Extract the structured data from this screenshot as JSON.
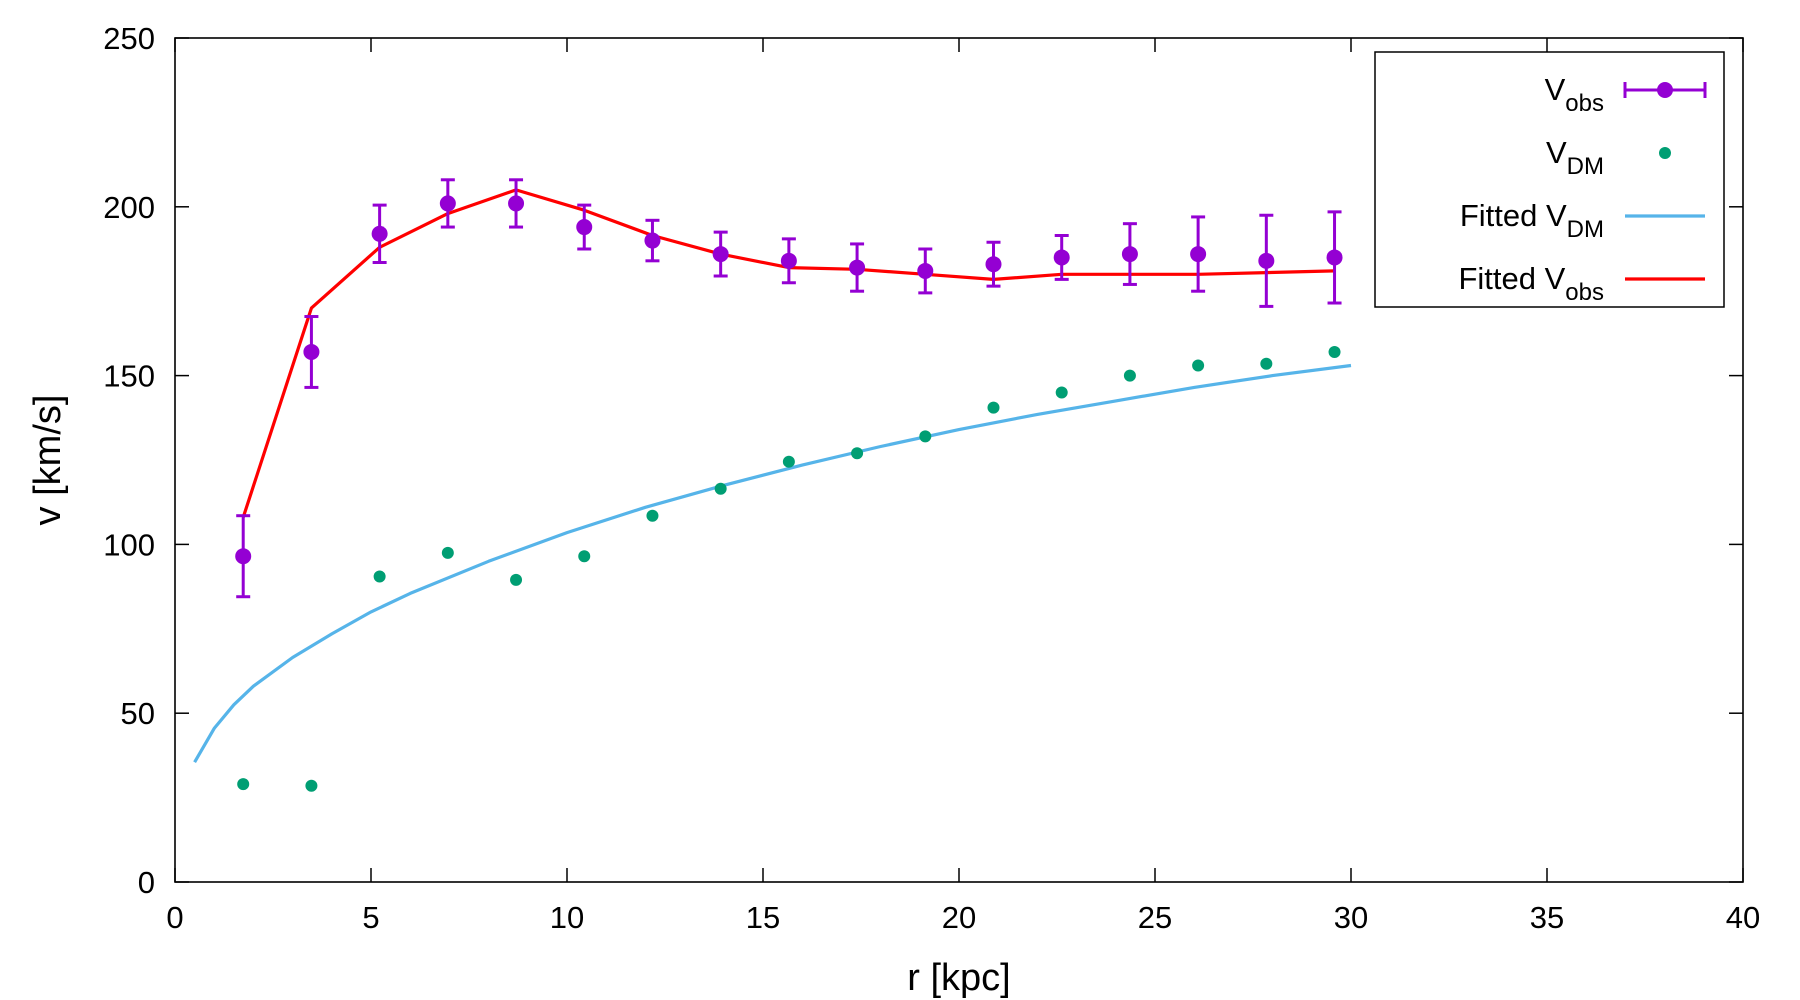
{
  "chart_data": {
    "type": "scatter",
    "title": "",
    "xlabel": "r [kpc]",
    "ylabel": "v [km/s]",
    "xlim": [
      0,
      40
    ],
    "ylim": [
      0,
      250
    ],
    "xticks": [
      0,
      5,
      10,
      15,
      20,
      25,
      30,
      35,
      40
    ],
    "yticks": [
      0,
      50,
      100,
      150,
      200,
      250
    ],
    "grid": false,
    "legend_position": "top-right",
    "series": [
      {
        "name": "V_obs",
        "label_main": "V",
        "label_sub": "obs",
        "kind": "errorbar",
        "color": "#9400d3",
        "x": [
          1.74,
          3.48,
          5.22,
          6.96,
          8.7,
          10.44,
          12.18,
          13.92,
          15.66,
          17.4,
          19.14,
          20.88,
          22.62,
          24.36,
          26.1,
          27.84,
          29.58
        ],
        "y": [
          96.5,
          157,
          192,
          201,
          201,
          194,
          190,
          186,
          184,
          182,
          181,
          183,
          185,
          186,
          186,
          184,
          185
        ],
        "err": [
          12,
          10.5,
          8.5,
          7,
          7,
          6.5,
          6,
          6.5,
          6.5,
          7,
          6.5,
          6.5,
          6.5,
          9,
          11,
          13.5,
          13.5
        ]
      },
      {
        "name": "V_DM",
        "label_main": "V",
        "label_sub": "DM",
        "kind": "points",
        "color": "#009e73",
        "x": [
          1.74,
          3.48,
          5.22,
          6.96,
          8.7,
          10.44,
          12.18,
          13.92,
          15.66,
          17.4,
          19.14,
          20.88,
          22.62,
          24.36,
          26.1,
          27.84,
          29.58
        ],
        "y": [
          29,
          28.5,
          90.5,
          97.5,
          89.5,
          96.5,
          108.5,
          116.5,
          124.5,
          127,
          132,
          140.5,
          145,
          150,
          153,
          153.5,
          157
        ]
      },
      {
        "name": "Fitted V_DM",
        "label_main": "Fitted V",
        "label_sub": "DM",
        "kind": "line",
        "color": "#56b4e9",
        "x": [
          0.5,
          1,
          1.5,
          2,
          3,
          4,
          5,
          6,
          8,
          10,
          12,
          14,
          16,
          18,
          20,
          22,
          24,
          26,
          28,
          30
        ],
        "y": [
          35.5,
          45.5,
          52.5,
          58,
          66.5,
          73.5,
          80,
          85.5,
          95,
          103.5,
          111,
          117.5,
          123.5,
          129,
          134,
          138.5,
          142.5,
          146.5,
          150,
          153
        ]
      },
      {
        "name": "Fitted V_obs",
        "label_main": "Fitted V",
        "label_sub": "obs",
        "kind": "line",
        "color": "#ff0000",
        "x": [
          1.74,
          3.48,
          5.22,
          6.96,
          8.7,
          10.44,
          12.18,
          13.92,
          15.66,
          17.4,
          19.14,
          20.88,
          22.62,
          24.36,
          26.1,
          27.84,
          29.58
        ],
        "y": [
          108,
          170,
          188,
          198,
          205,
          199,
          191.5,
          186,
          182,
          181.5,
          180,
          178.5,
          180,
          180,
          180,
          180.5,
          181
        ]
      }
    ]
  }
}
